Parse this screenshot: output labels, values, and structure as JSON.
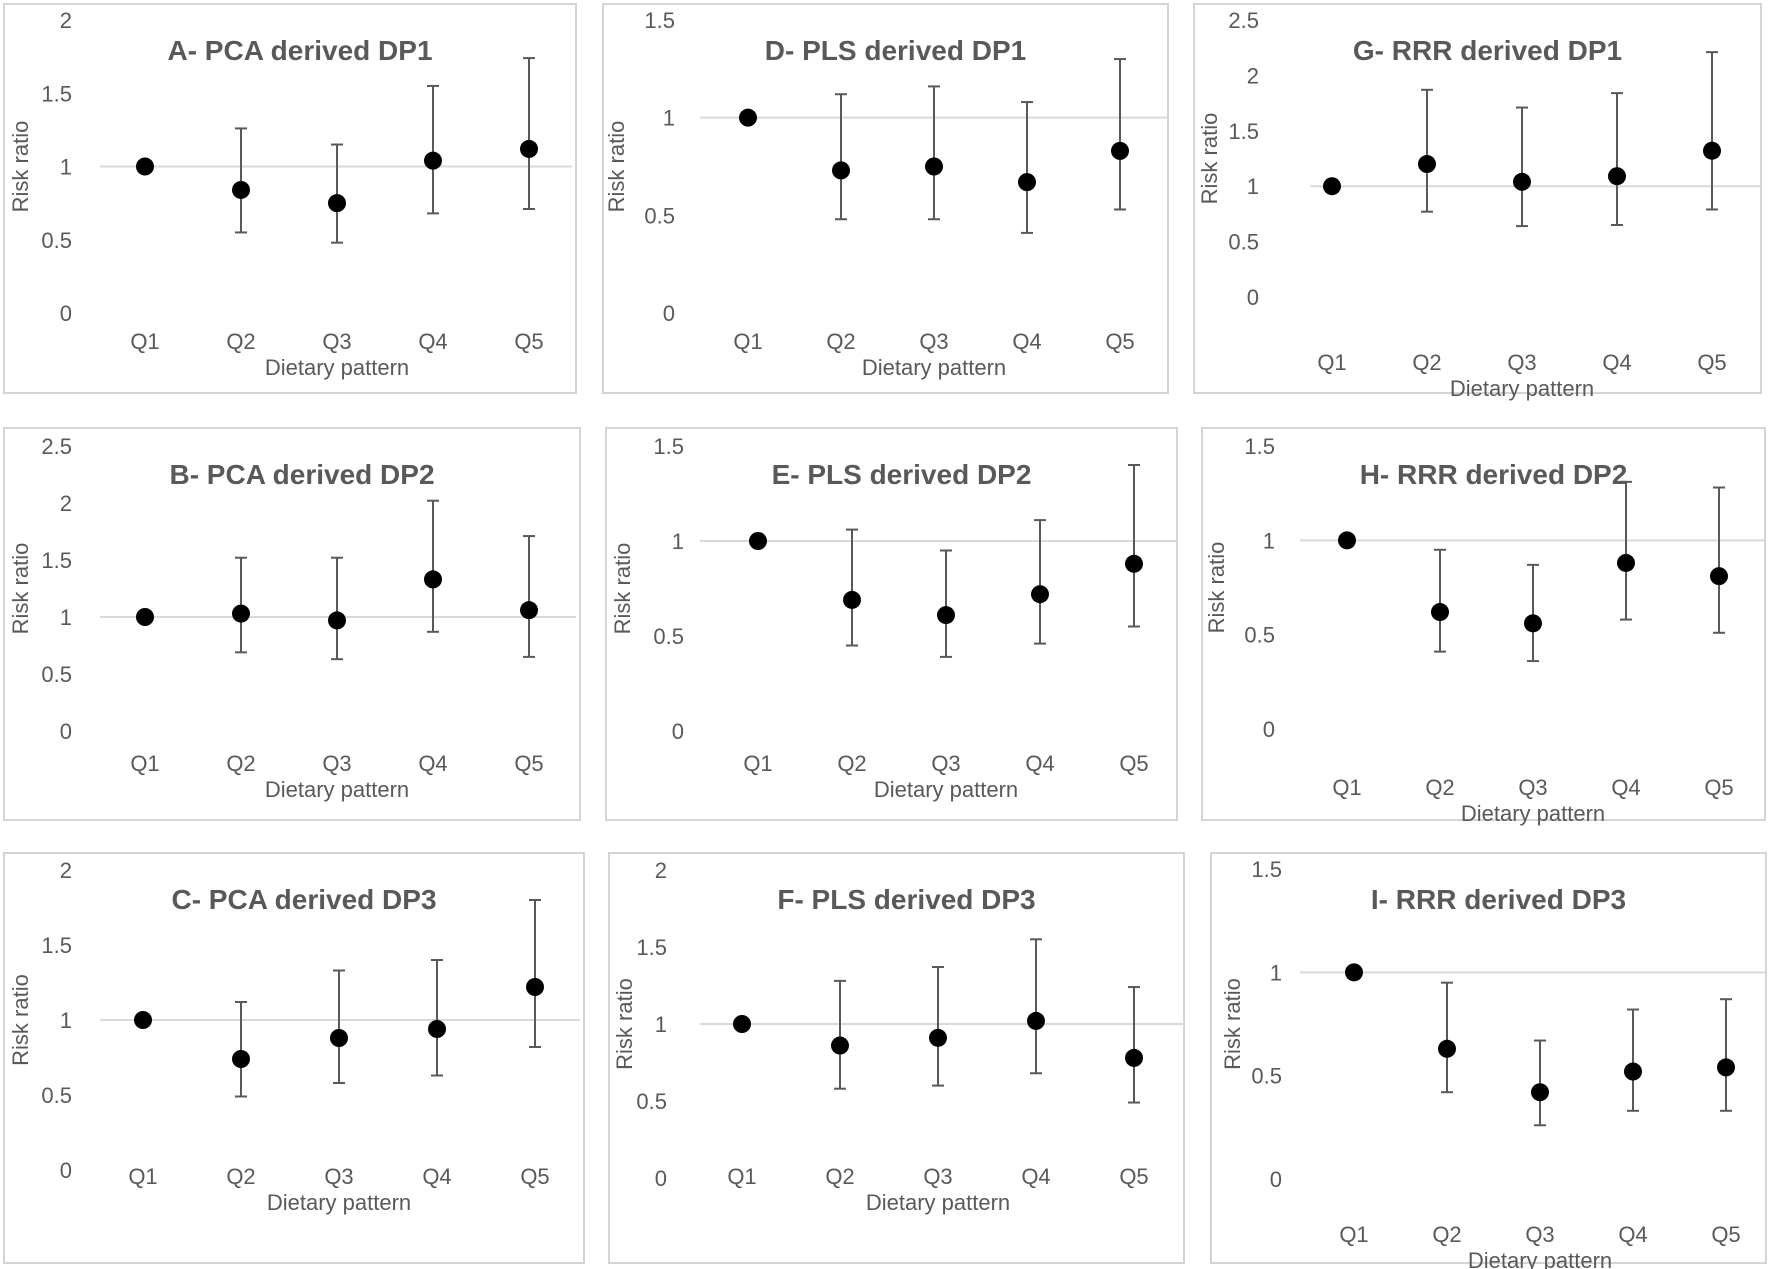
{
  "chart_data": [
    {
      "type": "scatter",
      "title": "A- PCA derived DP1",
      "xlabel": "Dietary pattern",
      "ylabel": "Risk ratio",
      "categories": [
        "Q1",
        "Q2",
        "Q3",
        "Q4",
        "Q5"
      ],
      "yticks": [
        "0",
        "0.5",
        "1",
        "1.5",
        "2"
      ],
      "ylim": [
        0,
        2
      ],
      "reference": 1,
      "values": [
        1.0,
        0.84,
        0.75,
        1.04,
        1.12
      ],
      "lower": [
        1.0,
        0.55,
        0.48,
        0.68,
        0.71
      ],
      "upper": [
        1.0,
        1.26,
        1.15,
        1.55,
        1.74
      ]
    },
    {
      "type": "scatter",
      "title": "B- PCA derived DP2",
      "xlabel": "Dietary pattern",
      "ylabel": "Risk ratio",
      "categories": [
        "Q1",
        "Q2",
        "Q3",
        "Q4",
        "Q5"
      ],
      "yticks": [
        "0",
        "0.5",
        "1",
        "1.5",
        "2",
        "2.5"
      ],
      "ylim": [
        0,
        2.5
      ],
      "reference": 1,
      "values": [
        1.0,
        1.03,
        0.97,
        1.33,
        1.06
      ],
      "lower": [
        1.0,
        0.69,
        0.63,
        0.87,
        0.65
      ],
      "upper": [
        1.0,
        1.52,
        1.52,
        2.02,
        1.71
      ]
    },
    {
      "type": "scatter",
      "title": "C- PCA derived DP3",
      "xlabel": "Dietary pattern",
      "ylabel": "Risk ratio",
      "categories": [
        "Q1",
        "Q2",
        "Q3",
        "Q4",
        "Q5"
      ],
      "yticks": [
        "0",
        "0.5",
        "1",
        "1.5",
        "2"
      ],
      "ylim": [
        0,
        2
      ],
      "reference": 1,
      "values": [
        1.0,
        0.74,
        0.88,
        0.94,
        1.22
      ],
      "lower": [
        1.0,
        0.49,
        0.58,
        0.63,
        0.82
      ],
      "upper": [
        1.0,
        1.12,
        1.33,
        1.4,
        1.8
      ]
    },
    {
      "type": "scatter",
      "title": "D- PLS derived DP1",
      "xlabel": "Dietary pattern",
      "ylabel": "Risk ratio",
      "categories": [
        "Q1",
        "Q2",
        "Q3",
        "Q4",
        "Q5"
      ],
      "yticks": [
        "0",
        "0.5",
        "1",
        "1.5"
      ],
      "ylim": [
        0,
        1.5
      ],
      "reference": 1,
      "values": [
        1.0,
        0.73,
        0.75,
        0.67,
        0.83
      ],
      "lower": [
        1.0,
        0.48,
        0.48,
        0.41,
        0.53
      ],
      "upper": [
        1.0,
        1.12,
        1.16,
        1.08,
        1.3
      ]
    },
    {
      "type": "scatter",
      "title": "E- PLS derived DP2",
      "xlabel": "Dietary pattern",
      "ylabel": "Risk ratio",
      "categories": [
        "Q1",
        "Q2",
        "Q3",
        "Q4",
        "Q5"
      ],
      "yticks": [
        "0",
        "0.5",
        "1",
        "1.5"
      ],
      "ylim": [
        0,
        1.5
      ],
      "reference": 1,
      "values": [
        1.0,
        0.69,
        0.61,
        0.72,
        0.88
      ],
      "lower": [
        1.0,
        0.45,
        0.39,
        0.46,
        0.55
      ],
      "upper": [
        1.0,
        1.06,
        0.95,
        1.11,
        1.4
      ]
    },
    {
      "type": "scatter",
      "title": "F- PLS derived DP3",
      "xlabel": "Dietary pattern",
      "ylabel": "Risk ratio",
      "categories": [
        "Q1",
        "Q2",
        "Q3",
        "Q4",
        "Q5"
      ],
      "yticks": [
        "0",
        "0.5",
        "1",
        "1.5",
        "2"
      ],
      "ylim": [
        0,
        2
      ],
      "reference": 1,
      "values": [
        1.0,
        0.86,
        0.91,
        1.02,
        0.78
      ],
      "lower": [
        1.0,
        0.58,
        0.6,
        0.68,
        0.49
      ],
      "upper": [
        1.0,
        1.28,
        1.37,
        1.55,
        1.24
      ]
    },
    {
      "type": "scatter",
      "title": "G- RRR derived DP1",
      "xlabel": "Dietary pattern",
      "ylabel": "Risk ratio",
      "categories": [
        "Q1",
        "Q2",
        "Q3",
        "Q4",
        "Q5"
      ],
      "yticks": [
        "0",
        "0.5",
        "1",
        "1.5",
        "2",
        "2.5"
      ],
      "ylim": [
        0,
        2.5
      ],
      "reference": 1,
      "values": [
        1.0,
        1.2,
        1.04,
        1.09,
        1.32
      ],
      "lower": [
        1.0,
        0.77,
        0.64,
        0.65,
        0.79
      ],
      "upper": [
        1.0,
        1.87,
        1.71,
        1.84,
        2.21
      ]
    },
    {
      "type": "scatter",
      "title": "H- RRR derived DP2",
      "xlabel": "Dietary pattern",
      "ylabel": "Risk ratio",
      "categories": [
        "Q1",
        "Q2",
        "Q3",
        "Q4",
        "Q5"
      ],
      "yticks": [
        "0",
        "0.5",
        "1",
        "1.5"
      ],
      "ylim": [
        0,
        1.5
      ],
      "reference": 1,
      "values": [
        1.0,
        0.62,
        0.56,
        0.88,
        0.81
      ],
      "lower": [
        1.0,
        0.41,
        0.36,
        0.58,
        0.51
      ],
      "upper": [
        1.0,
        0.95,
        0.87,
        1.31,
        1.28
      ]
    },
    {
      "type": "scatter",
      "title": "I- RRR derived DP3",
      "xlabel": "Dietary pattern",
      "ylabel": "Risk ratio",
      "categories": [
        "Q1",
        "Q2",
        "Q3",
        "Q4",
        "Q5"
      ],
      "yticks": [
        "0",
        "0.5",
        "1",
        "1.5"
      ],
      "ylim": [
        0,
        1.5
      ],
      "reference": 1,
      "values": [
        1.0,
        0.63,
        0.42,
        0.52,
        0.54
      ],
      "lower": [
        1.0,
        0.42,
        0.26,
        0.33,
        0.33
      ],
      "upper": [
        1.0,
        0.95,
        0.67,
        0.82,
        0.87
      ]
    }
  ]
}
